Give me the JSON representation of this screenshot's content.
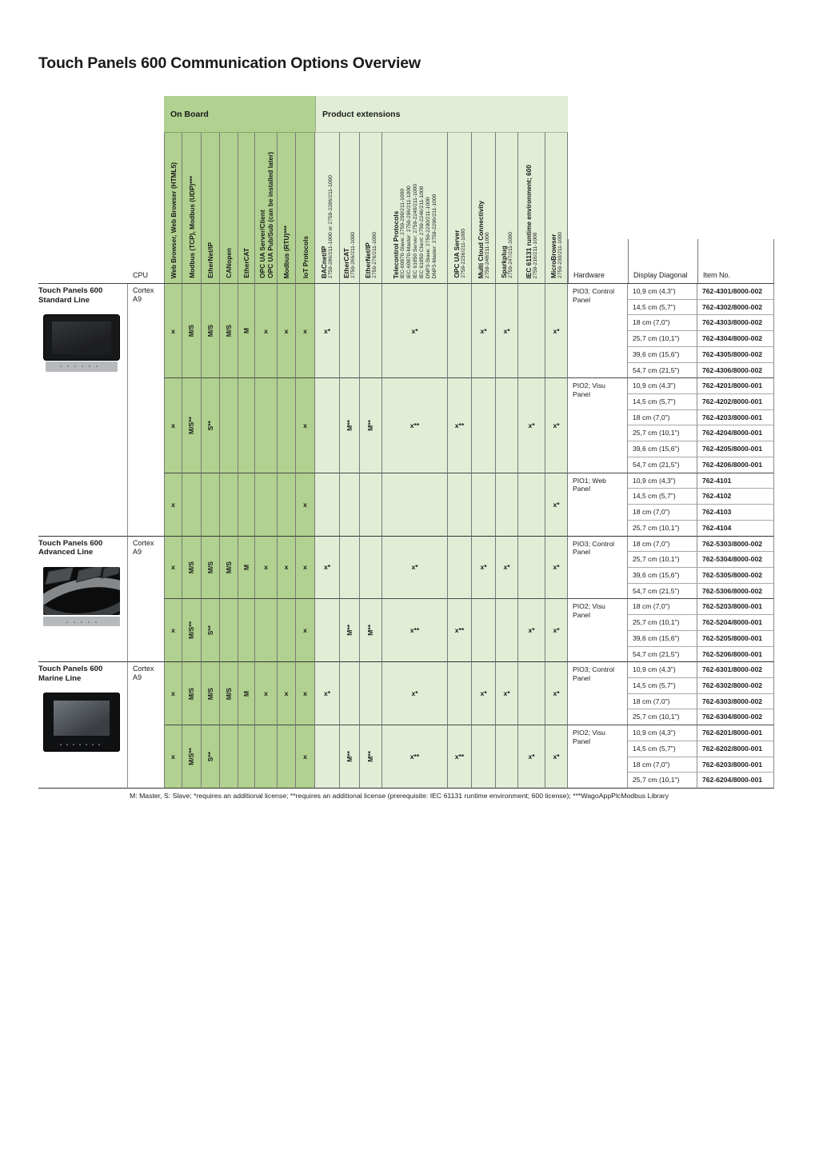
{
  "page": {
    "title": "Touch Panels 600 Communication Options Overview",
    "footnote": "M: Master, S: Slave; *requires an additional license; **requires an additional license (prerequisite: IEC 61131 runtime environment; 600 license); ***WagoAppPlcModbus Library"
  },
  "table": {
    "groups": {
      "on_board": "On Board",
      "extensions": "Product extensions"
    },
    "cpu_header": "CPU",
    "right_headers": {
      "hardware": "Hardware",
      "display": "Display Diagonal",
      "item": "Item No."
    },
    "columns": [
      {
        "label_lines": [
          "Web Browser, Web Browser (HTML5)"
        ],
        "sub_lines": []
      },
      {
        "label_lines": [
          "Modbus (TCP), Modbus (UDP)***"
        ],
        "sub_lines": []
      },
      {
        "label_lines": [
          "EtherNet/IP"
        ],
        "sub_lines": []
      },
      {
        "label_lines": [
          "CANopen"
        ],
        "sub_lines": []
      },
      {
        "label_lines": [
          "EtherCAT"
        ],
        "sub_lines": []
      },
      {
        "label_lines": [
          "OPC UA Server/Client",
          "OPC UA Pub/Sub (can be installed later)"
        ],
        "sub_lines": []
      },
      {
        "label_lines": [
          "Modbus (RTU)***"
        ],
        "sub_lines": []
      },
      {
        "label_lines": [
          "IoT Protocols"
        ],
        "sub_lines": []
      },
      {
        "label_lines": [
          "BACnet/IP"
        ],
        "sub_lines": [
          "2759-286/211-1000 or 2759-2286/211-1000"
        ]
      },
      {
        "label_lines": [
          "EtherCAT"
        ],
        "sub_lines": [
          "2759-266/211-1000"
        ]
      },
      {
        "label_lines": [
          "EtherNet/IP"
        ],
        "sub_lines": [
          "2759-276/211-1000"
        ]
      },
      {
        "label_lines": [
          "Telecontrol Protocols"
        ],
        "sub_lines": [
          "IEC-60870-Slave: 2759-290/211-1000",
          "IEC-60870-Master: 2759-296/211-1000",
          "IEC 61850 Server: 2759-2240/211-1000",
          "IEC 61850 Client: 2759-2246/211-1000",
          "DNP3-Slave: 2759-2290/211-1000",
          "DNP3-Master: 2759-2296/211-1000"
        ]
      },
      {
        "label_lines": [
          "OPC UA Server"
        ],
        "sub_lines": [
          "2759-2236/211-1000"
        ]
      },
      {
        "label_lines": [
          "Multi Cloud Connectivity"
        ],
        "sub_lines": [
          "2759-248/211-1000"
        ]
      },
      {
        "label_lines": [
          "Sparkplug"
        ],
        "sub_lines": [
          "2759-247/211-1000"
        ]
      },
      {
        "label_lines": [
          "IEC 61131 runtime environment; 600"
        ],
        "sub_lines": [
          "2759-216/211-1000"
        ]
      },
      {
        "label_lines": [
          "MicroBrowser"
        ],
        "sub_lines": [
          "2759-230/211-1000"
        ]
      }
    ],
    "product_lines": [
      {
        "name_lines": [
          "Touch Panels 600",
          "Standard Line"
        ],
        "cpu_lines": [
          "Cortex",
          "A9"
        ],
        "blocks": [
          {
            "hardware": "PIO3; Control Panel",
            "marks": [
              "x",
              "M/S",
              "M/S",
              "M/S",
              "M",
              "x",
              "x",
              "x",
              "x*",
              "",
              "",
              "x*",
              "",
              "x*",
              "x*",
              "",
              "x*"
            ],
            "rows": [
              {
                "display": "10,9 cm (4,3\")",
                "item": "762-4301/8000-002"
              },
              {
                "display": "14,5 cm (5,7\")",
                "item": "762-4302/8000-002"
              },
              {
                "display": "18 cm (7,0\")",
                "item": "762-4303/8000-002"
              },
              {
                "display": "25,7 cm (10,1\")",
                "item": "762-4304/8000-002"
              },
              {
                "display": "39,6 cm (15,6\")",
                "item": "762-4305/8000-002"
              },
              {
                "display": "54,7 cm (21,5\")",
                "item": "762-4306/8000-002"
              }
            ]
          },
          {
            "hardware": "PIO2; Visu Panel",
            "marks": [
              "x",
              "M/S**",
              "S**",
              "",
              "",
              "",
              "",
              "x",
              "",
              "M**",
              "M**",
              "x**",
              "x**",
              "",
              "",
              "x*",
              "x*"
            ],
            "rows": [
              {
                "display": "10,9 cm (4,3\")",
                "item": "762-4201/8000-001"
              },
              {
                "display": "14,5 cm (5,7\")",
                "item": "762-4202/8000-001"
              },
              {
                "display": "18 cm (7,0\")",
                "item": "762-4203/8000-001"
              },
              {
                "display": "25,7 cm (10,1\")",
                "item": "762-4204/8000-001"
              },
              {
                "display": "39,6 cm (15,6\")",
                "item": "762-4205/8000-001"
              },
              {
                "display": "54,7 cm (21,5\")",
                "item": "762-4206/8000-001"
              }
            ]
          },
          {
            "hardware": "PIO1; Web Panel",
            "marks": [
              "x",
              "",
              "",
              "",
              "",
              "",
              "",
              "x",
              "",
              "",
              "",
              "",
              "",
              "",
              "",
              "",
              "x*"
            ],
            "rows": [
              {
                "display": "10,9 cm (4,3\")",
                "item": "762-4101"
              },
              {
                "display": "14,5 cm (5,7\")",
                "item": "762-4102"
              },
              {
                "display": "18 cm (7,0\")",
                "item": "762-4103"
              },
              {
                "display": "25,7 cm (10,1\")",
                "item": "762-4104"
              }
            ]
          }
        ]
      },
      {
        "name_lines": [
          "Touch Panels 600",
          "Advanced Line"
        ],
        "cpu_lines": [
          "Cortex",
          "A9"
        ],
        "blocks": [
          {
            "hardware": "PIO3; Control Panel",
            "marks": [
              "x",
              "M/S",
              "M/S",
              "M/S",
              "M",
              "x",
              "x",
              "x",
              "x*",
              "",
              "",
              "x*",
              "",
              "x*",
              "x*",
              "",
              "x*"
            ],
            "rows": [
              {
                "display": "18 cm (7,0\")",
                "item": "762-5303/8000-002"
              },
              {
                "display": "25,7 cm (10,1\")",
                "item": "762-5304/8000-002"
              },
              {
                "display": "39,6 cm (15,6\")",
                "item": "762-5305/8000-002"
              },
              {
                "display": "54,7 cm (21,5\")",
                "item": "762-5306/8000-002"
              }
            ]
          },
          {
            "hardware": "PIO2; Visu Panel",
            "marks": [
              "x",
              "M/S**",
              "S**",
              "",
              "",
              "",
              "",
              "x",
              "",
              "M**",
              "M**",
              "x**",
              "x**",
              "",
              "",
              "x*",
              "x*"
            ],
            "rows": [
              {
                "display": "18 cm (7,0\")",
                "item": "762-5203/8000-001"
              },
              {
                "display": "25,7 cm (10,1\")",
                "item": "762-5204/8000-001"
              },
              {
                "display": "39,6 cm (15,6\")",
                "item": "762-5205/8000-001"
              },
              {
                "display": "54,7 cm (21,5\")",
                "item": "762-5206/8000-001"
              }
            ]
          }
        ]
      },
      {
        "name_lines": [
          "Touch Panels 600",
          "Marine Line"
        ],
        "cpu_lines": [
          "Cortex",
          "A9"
        ],
        "blocks": [
          {
            "hardware": "PIO3; Control Panel",
            "marks": [
              "x",
              "M/S",
              "M/S",
              "M/S",
              "M",
              "x",
              "x",
              "x",
              "x*",
              "",
              "",
              "x*",
              "",
              "x*",
              "x*",
              "",
              "x*"
            ],
            "rows": [
              {
                "display": "10,9 cm (4,3\")",
                "item": "762-6301/8000-002"
              },
              {
                "display": "14,5 cm (5,7\")",
                "item": "762-6302/8000-002"
              },
              {
                "display": "18 cm (7,0\")",
                "item": "762-6303/8000-002"
              },
              {
                "display": "25,7 cm (10,1\")",
                "item": "762-6304/8000-002"
              }
            ]
          },
          {
            "hardware": "PIO2; Visu Panel",
            "marks": [
              "x",
              "M/S**",
              "S**",
              "",
              "",
              "",
              "",
              "x",
              "",
              "M**",
              "M**",
              "x**",
              "x**",
              "",
              "",
              "x*",
              "x*"
            ],
            "rows": [
              {
                "display": "10,9 cm (4,3\")",
                "item": "762-6201/8000-001"
              },
              {
                "display": "14,5 cm (5,7\")",
                "item": "762-6202/8000-001"
              },
              {
                "display": "18 cm (7,0\")",
                "item": "762-6203/8000-001"
              },
              {
                "display": "25,7 cm (10,1\")",
                "item": "762-6204/8000-001"
              }
            ]
          }
        ]
      }
    ]
  }
}
